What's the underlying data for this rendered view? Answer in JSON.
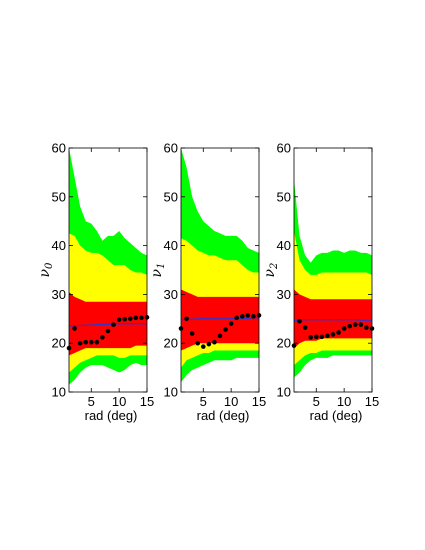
{
  "colors": {
    "outer_band": "#00ff00",
    "mid_band": "#ffff00",
    "inner_band": "#ff0000",
    "median_line": "#3333cc",
    "points": "#000000"
  },
  "chart_data": [
    {
      "type": "area",
      "ylabel_symbol": "ν",
      "ylabel_sub": "0",
      "xlabel": "rad (deg)",
      "xlim": [
        1,
        15
      ],
      "ylim": [
        10,
        60
      ],
      "xticks": [
        5,
        10,
        15
      ],
      "yticks": [
        10,
        20,
        30,
        40,
        50,
        60
      ],
      "x": [
        1,
        2,
        3,
        4,
        5,
        6,
        7,
        8,
        9,
        10,
        11,
        12,
        13,
        14,
        15
      ],
      "bands": {
        "outer": {
          "upper": [
            60,
            54,
            48,
            45,
            44.5,
            43,
            41,
            42,
            42,
            43,
            41.5,
            40.5,
            39.5,
            38.5,
            38
          ],
          "lower": [
            11.5,
            12.5,
            14,
            15,
            15.5,
            15.5,
            15.5,
            15,
            14.5,
            14,
            14.5,
            15.5,
            16,
            15.5,
            15.5
          ]
        },
        "mid": {
          "upper": [
            42.5,
            42,
            40,
            39,
            38.5,
            38.5,
            38,
            37,
            36,
            36,
            36,
            35,
            34.5,
            34.5,
            34
          ],
          "lower": [
            14,
            15,
            16,
            16.5,
            17,
            17.5,
            17.5,
            17.5,
            17.5,
            17,
            17,
            17.5,
            17.5,
            17.5,
            17.5
          ]
        },
        "inner": {
          "upper": [
            30.5,
            29.5,
            29,
            28.5,
            28.5,
            28.5,
            28.5,
            28.5,
            28.5,
            28.5,
            28.5,
            28.5,
            28.5,
            28.5,
            28.5
          ],
          "lower": [
            17.5,
            18,
            18.5,
            19,
            19,
            19,
            19,
            19,
            19,
            19,
            19,
            19,
            19.5,
            19.5,
            19.5
          ]
        }
      },
      "median": [
        23.5,
        23.6,
        23.6,
        23.7,
        23.7,
        23.8,
        23.8,
        23.9,
        23.9,
        24,
        24,
        24,
        24,
        24,
        24
      ],
      "points": [
        19,
        23,
        20,
        20.2,
        20.2,
        20.2,
        21.2,
        22.5,
        23.8,
        24.8,
        24.9,
        25,
        25.2,
        25.2,
        25.3
      ]
    },
    {
      "type": "area",
      "ylabel_symbol": "ν",
      "ylabel_sub": "1",
      "xlabel": "rad (deg)",
      "xlim": [
        1,
        15
      ],
      "ylim": [
        10,
        60
      ],
      "xticks": [
        5,
        10,
        15
      ],
      "yticks": [
        10,
        20,
        30,
        40,
        50,
        60
      ],
      "x": [
        1,
        2,
        3,
        4,
        5,
        6,
        7,
        8,
        9,
        10,
        11,
        12,
        13,
        14,
        15
      ],
      "bands": {
        "outer": {
          "upper": [
            60,
            56,
            50,
            47,
            45,
            44,
            43,
            42.5,
            42,
            42,
            42,
            41,
            39.5,
            39,
            38.5
          ],
          "lower": [
            12,
            13.5,
            14.5,
            15,
            15.5,
            16,
            16.5,
            16.5,
            16.5,
            16.5,
            17,
            17,
            17,
            17,
            17
          ]
        },
        "mid": {
          "upper": [
            41.5,
            41,
            40,
            39,
            38.5,
            38,
            38,
            37.5,
            37,
            37,
            37,
            36,
            35,
            34.5,
            34.5
          ],
          "lower": [
            15,
            16.5,
            17,
            17.5,
            18,
            18,
            18.5,
            18.5,
            18.5,
            18.5,
            18.5,
            18.5,
            18.5,
            18.5,
            18.5
          ]
        },
        "inner": {
          "upper": [
            31,
            30.5,
            30,
            29.5,
            29.5,
            29.5,
            29.5,
            29.5,
            29.5,
            29.5,
            29.5,
            29.5,
            29.5,
            29.5,
            29.5
          ],
          "lower": [
            18.5,
            19,
            19.5,
            20,
            20,
            20,
            20,
            20,
            20,
            20,
            20,
            20,
            20,
            20,
            20
          ]
        }
      },
      "median": [
        24.8,
        24.9,
        24.9,
        25,
        25,
        25,
        25,
        25,
        25,
        25,
        25.1,
        25.1,
        25.1,
        25.2,
        25.2
      ],
      "points": [
        23,
        25,
        22,
        20,
        19.3,
        19.8,
        20.2,
        21.5,
        22.8,
        24,
        25.2,
        25.5,
        25.7,
        25.5,
        25.7
      ]
    },
    {
      "type": "area",
      "ylabel_symbol": "ν",
      "ylabel_sub": "2",
      "xlabel": "rad (deg)",
      "xlim": [
        1,
        15
      ],
      "ylim": [
        10,
        60
      ],
      "xticks": [
        5,
        10,
        15
      ],
      "yticks": [
        10,
        20,
        30,
        40,
        50,
        60
      ],
      "x": [
        1,
        2,
        3,
        4,
        5,
        6,
        7,
        8,
        9,
        10,
        11,
        12,
        13,
        14,
        15
      ],
      "bands": {
        "outer": {
          "upper": [
            53.5,
            42,
            38,
            36.5,
            38,
            38.5,
            38.5,
            39,
            39,
            38.5,
            39,
            39,
            38.5,
            38.5,
            38
          ],
          "lower": [
            13,
            14,
            15.5,
            16.5,
            17,
            17,
            17,
            17.5,
            17.5,
            17.5,
            17.5,
            17.5,
            17.5,
            17.5,
            17.5
          ]
        },
        "mid": {
          "upper": [
            43,
            37,
            35,
            34,
            34,
            34.5,
            34.5,
            34.5,
            34.5,
            34.5,
            34.5,
            34.5,
            34.5,
            34.5,
            34
          ],
          "lower": [
            15.5,
            16.5,
            17.5,
            18,
            18,
            18.5,
            18.5,
            18.5,
            18.5,
            18.5,
            18.5,
            18.5,
            18.5,
            18.5,
            18.5
          ]
        },
        "inner": {
          "upper": [
            31,
            30,
            29.5,
            29,
            29,
            29,
            29,
            29,
            29,
            29,
            29,
            29,
            29,
            29,
            29
          ],
          "lower": [
            19,
            20,
            20.5,
            20.5,
            20.5,
            21,
            21,
            21,
            21,
            21,
            21,
            21,
            21,
            21,
            21
          ]
        }
      },
      "median": [
        24.6,
        24.8,
        24.8,
        24.8,
        24.8,
        24.8,
        24.8,
        24.8,
        24.8,
        24.8,
        24.8,
        24.8,
        24.7,
        24.7,
        24.7
      ],
      "points": [
        19.5,
        24.5,
        23.2,
        21.2,
        21.3,
        21.3,
        21.5,
        21.8,
        22.2,
        23,
        23.5,
        23.8,
        23.8,
        23.2,
        23
      ]
    }
  ]
}
